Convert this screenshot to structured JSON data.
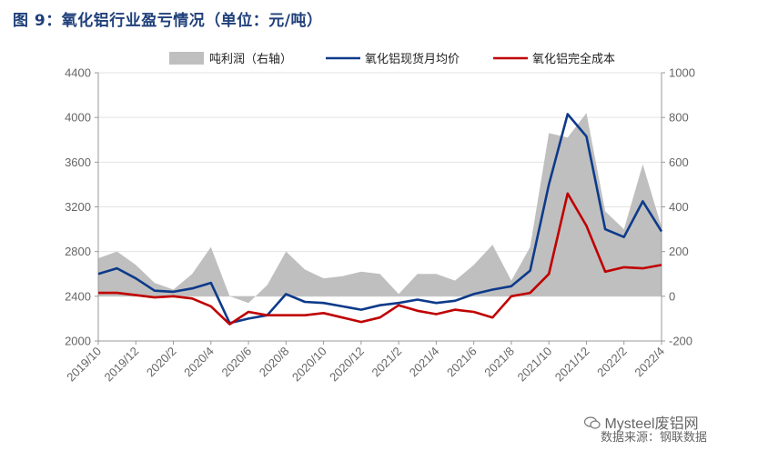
{
  "figure_label": "图 9：氧化铝行业盈亏情况（单位：元/吨）",
  "watermark": "Mysteel废铝网",
  "source": "数据来源：钢联数据",
  "colors": {
    "profit_area": "#bfbfbf",
    "price_line": "#0d3a8a",
    "cost_line": "#c00000"
  },
  "chart_data": {
    "type": "area+line",
    "x": [
      "2019/10",
      "2019/11",
      "2019/12",
      "2020/1",
      "2020/2",
      "2020/3",
      "2020/4",
      "2020/5",
      "2020/6",
      "2020/7",
      "2020/8",
      "2020/9",
      "2020/10",
      "2020/11",
      "2020/12",
      "2021/1",
      "2021/2",
      "2021/3",
      "2021/4",
      "2021/5",
      "2021/6",
      "2021/7",
      "2021/8",
      "2021/9",
      "2021/10",
      "2021/11",
      "2021/12",
      "2022/1",
      "2022/2",
      "2022/3",
      "2022/4"
    ],
    "x_tick_labels": [
      "2019/10",
      "2019/12",
      "2020/2",
      "2020/4",
      "2020/6",
      "2020/8",
      "2020/10",
      "2020/12",
      "2021/2",
      "2021/4",
      "2021/6",
      "2021/8",
      "2021/10",
      "2021/12",
      "2022/2",
      "2022/4"
    ],
    "left_axis": {
      "ylim": [
        2000,
        4400
      ],
      "ticks": [
        "2000",
        "2400",
        "2800",
        "3200",
        "3600",
        "4000",
        "4400"
      ]
    },
    "right_axis": {
      "ylim": [
        -200,
        1000
      ],
      "ticks": [
        "-200",
        "0",
        "200",
        "400",
        "600",
        "800",
        "1000"
      ]
    },
    "series": [
      {
        "name": "吨利润（右轴）",
        "type": "area",
        "axis": "right",
        "values": [
          170,
          200,
          140,
          60,
          30,
          100,
          220,
          0,
          -30,
          50,
          200,
          120,
          80,
          90,
          110,
          100,
          10,
          100,
          100,
          70,
          140,
          230,
          70,
          220,
          730,
          710,
          820,
          380,
          300,
          590,
          310
        ]
      },
      {
        "name": "氧化铝现货月均价",
        "type": "line",
        "axis": "left",
        "values": [
          2600,
          2650,
          2560,
          2450,
          2440,
          2470,
          2520,
          2160,
          2200,
          2230,
          2420,
          2350,
          2340,
          2310,
          2280,
          2320,
          2340,
          2370,
          2340,
          2360,
          2420,
          2460,
          2490,
          2630,
          3400,
          4030,
          3830,
          3000,
          2930,
          3250,
          2980
        ]
      },
      {
        "name": "氧化铝完全成本",
        "type": "line",
        "axis": "left",
        "values": [
          2430,
          2430,
          2410,
          2390,
          2400,
          2380,
          2310,
          2150,
          2260,
          2230,
          2230,
          2230,
          2250,
          2210,
          2170,
          2210,
          2320,
          2270,
          2240,
          2280,
          2260,
          2210,
          2400,
          2430,
          2600,
          3320,
          3030,
          2620,
          2660,
          2650,
          2680
        ]
      }
    ]
  }
}
